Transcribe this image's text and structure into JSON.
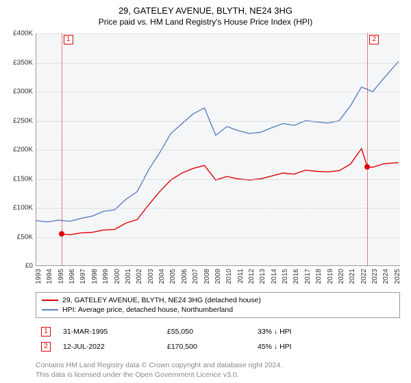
{
  "title": "29, GATELEY AVENUE, BLYTH, NE24 3HG",
  "subtitle": "Price paid vs. HM Land Registry's House Price Index (HPI)",
  "chart": {
    "type": "line",
    "background_color": "#f5f6f8",
    "grid_color": "#c8c8c8",
    "axis_color": "#999999",
    "ylim": [
      0,
      400000
    ],
    "ytick_step": 50000,
    "ytick_labels": [
      "£0",
      "£50K",
      "£100K",
      "£150K",
      "£200K",
      "£250K",
      "£300K",
      "£350K",
      "£400K"
    ],
    "xlim": [
      1993,
      2025.5
    ],
    "xtick_step": 1,
    "xtick_labels": [
      "1993",
      "1994",
      "1995",
      "1996",
      "1997",
      "1998",
      "1999",
      "2000",
      "2001",
      "2002",
      "2003",
      "2004",
      "2005",
      "2006",
      "2007",
      "2008",
      "2009",
      "2010",
      "2011",
      "2012",
      "2013",
      "2014",
      "2015",
      "2016",
      "2017",
      "2018",
      "2019",
      "2020",
      "2021",
      "2022",
      "2023",
      "2024",
      "2025"
    ],
    "label_fontsize": 10,
    "title_fontsize": 13,
    "series": [
      {
        "name": "price_paid",
        "label": "29, GATELEY AVENUE, BLYTH, NE24 3HG (detached house)",
        "color": "#e00000",
        "line_width": 1.4,
        "x": [
          1995.25,
          1996,
          1997,
          1998,
          1999,
          2000,
          2001,
          2002,
          2003,
          2004,
          2005,
          2006,
          2007,
          2008,
          2009,
          2010,
          2011,
          2012,
          2013,
          2014,
          2015,
          2016,
          2017,
          2018,
          2019,
          2020,
          2021,
          2022,
          2022.53,
          2023,
          2024,
          2025.3
        ],
        "y": [
          55050,
          54000,
          57000,
          58000,
          62000,
          63000,
          74000,
          80000,
          105000,
          128000,
          148000,
          160000,
          168000,
          173000,
          148000,
          154000,
          150000,
          148000,
          150000,
          155000,
          160000,
          158000,
          165000,
          163000,
          162000,
          164000,
          175000,
          202000,
          170500,
          170000,
          176000,
          178000
        ]
      },
      {
        "name": "hpi",
        "label": "HPI: Average price, detached house, Northumberland",
        "color": "#5b7fbf",
        "line_width": 1.4,
        "x": [
          1993,
          1994,
          1995,
          1996,
          1997,
          1998,
          1999,
          2000,
          2001,
          2002,
          2003,
          2004,
          2005,
          2006,
          2007,
          2008,
          2009,
          2010,
          2011,
          2012,
          2013,
          2014,
          2015,
          2016,
          2017,
          2018,
          2019,
          2020,
          2021,
          2022,
          2023,
          2024,
          2025.3
        ],
        "y": [
          78000,
          76000,
          79000,
          77000,
          82000,
          86000,
          94000,
          97000,
          115000,
          128000,
          165000,
          195000,
          228000,
          245000,
          262000,
          272000,
          225000,
          240000,
          233000,
          228000,
          230000,
          238000,
          245000,
          242000,
          250000,
          248000,
          246000,
          250000,
          275000,
          308000,
          300000,
          323000,
          352000
        ]
      }
    ],
    "events": [
      {
        "badge": "1",
        "date_x": 1995.25,
        "marker_y": 55050,
        "line_color": "#e00000"
      },
      {
        "badge": "2",
        "date_x": 2022.53,
        "marker_y": 170500,
        "line_color": "#e00000"
      }
    ],
    "marker_color": "#e00000",
    "marker_size": 8
  },
  "legend": {
    "rows": [
      {
        "color": "#e00000",
        "text": "29, GATELEY AVENUE, BLYTH, NE24 3HG (detached house)"
      },
      {
        "color": "#5b7fbf",
        "text": "HPI: Average price, detached house, Northumberland"
      }
    ]
  },
  "events_table": {
    "rows": [
      {
        "badge": "1",
        "date": "31-MAR-1995",
        "price": "£55,050",
        "delta": "33% ↓ HPI"
      },
      {
        "badge": "2",
        "date": "12-JUL-2022",
        "price": "£170,500",
        "delta": "45% ↓ HPI"
      }
    ]
  },
  "attribution": {
    "line1": "Contains HM Land Registry data © Crown copyright and database right 2024.",
    "line2": "This data is licensed under the Open Government Licence v3.0."
  }
}
